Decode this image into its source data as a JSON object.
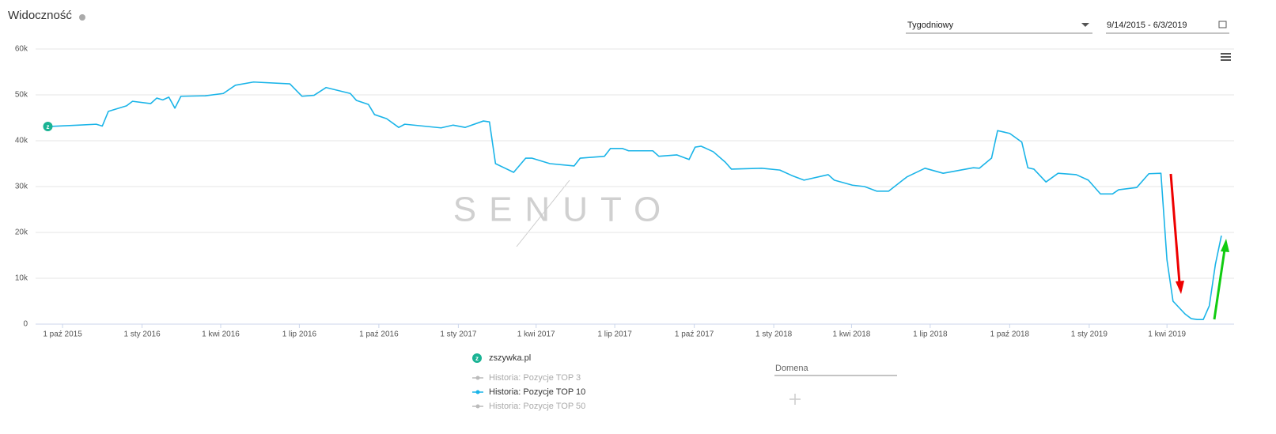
{
  "chart_data": {
    "type": "line",
    "title": "Widoczność",
    "controls": {
      "interval": "Tygodniowy",
      "date_range": "9/14/2015 - 6/3/2019",
      "domain_input": "Domena"
    },
    "watermark": "SENUTO",
    "domain": "zszywka.pl",
    "inactive_series": [
      "Historia: Pozycje TOP 3",
      "Historia: Pozycje TOP 50"
    ],
    "xlim": [
      "2015-09-14",
      "2019-06-03"
    ],
    "xticks": [
      {
        "value": "2015-10-01",
        "label": "1 paź 2015"
      },
      {
        "value": "2016-01-01",
        "label": "1 sty 2016"
      },
      {
        "value": "2016-04-01",
        "label": "1 kwi 2016"
      },
      {
        "value": "2016-07-01",
        "label": "1 lip 2016"
      },
      {
        "value": "2016-10-01",
        "label": "1 paź 2016"
      },
      {
        "value": "2017-01-01",
        "label": "1 sty 2017"
      },
      {
        "value": "2017-04-01",
        "label": "1 kwi 2017"
      },
      {
        "value": "2017-07-01",
        "label": "1 lip 2017"
      },
      {
        "value": "2017-10-01",
        "label": "1 paź 2017"
      },
      {
        "value": "2018-01-01",
        "label": "1 sty 2018"
      },
      {
        "value": "2018-04-01",
        "label": "1 kwi 2018"
      },
      {
        "value": "2018-07-01",
        "label": "1 lip 2018"
      },
      {
        "value": "2018-10-01",
        "label": "1 paź 2018"
      },
      {
        "value": "2019-01-01",
        "label": "1 sty 2019"
      },
      {
        "value": "2019-04-01",
        "label": "1 kwi 2019"
      }
    ],
    "ylim": [
      0,
      60000
    ],
    "yticks": [
      0,
      {
        "value": 10000,
        "label": "10k"
      },
      {
        "value": 20000,
        "label": "20k"
      },
      {
        "value": 30000,
        "label": "30k"
      },
      {
        "value": 40000,
        "label": "40k"
      },
      {
        "value": 50000,
        "label": "50k"
      },
      {
        "value": 60000,
        "label": "60k"
      }
    ],
    "grid": true,
    "x": [
      "2015-09-14",
      "2015-10-19",
      "2015-11-09",
      "2015-11-16",
      "2015-11-23",
      "2015-12-14",
      "2015-12-21",
      "2016-01-11",
      "2016-01-18",
      "2016-01-25",
      "2016-02-01",
      "2016-02-08",
      "2016-02-15",
      "2016-03-14",
      "2016-04-04",
      "2016-04-18",
      "2016-05-09",
      "2016-06-20",
      "2016-07-04",
      "2016-07-18",
      "2016-08-01",
      "2016-08-29",
      "2016-09-05",
      "2016-09-19",
      "2016-09-26",
      "2016-10-10",
      "2016-10-24",
      "2016-10-31",
      "2016-12-12",
      "2016-12-26",
      "2017-01-09",
      "2017-01-30",
      "2017-02-06",
      "2017-02-13",
      "2017-03-06",
      "2017-03-20",
      "2017-03-27",
      "2017-04-17",
      "2017-05-15",
      "2017-05-22",
      "2017-06-19",
      "2017-06-26",
      "2017-07-10",
      "2017-07-17",
      "2017-08-14",
      "2017-08-21",
      "2017-09-11",
      "2017-09-25",
      "2017-10-02",
      "2017-10-09",
      "2017-10-23",
      "2017-11-06",
      "2017-11-13",
      "2017-12-18",
      "2018-01-08",
      "2018-01-22",
      "2018-02-05",
      "2018-03-05",
      "2018-03-12",
      "2018-04-02",
      "2018-04-16",
      "2018-04-30",
      "2018-05-14",
      "2018-06-04",
      "2018-06-25",
      "2018-07-16",
      "2018-08-20",
      "2018-08-27",
      "2018-09-10",
      "2018-09-17",
      "2018-10-01",
      "2018-10-15",
      "2018-10-22",
      "2018-10-29",
      "2018-11-12",
      "2018-11-26",
      "2018-12-17",
      "2018-12-31",
      "2019-01-14",
      "2019-01-28",
      "2019-02-04",
      "2019-02-25",
      "2019-03-11",
      "2019-03-25",
      "2019-04-01",
      "2019-04-08",
      "2019-04-15",
      "2019-04-22",
      "2019-04-29",
      "2019-05-06",
      "2019-05-13",
      "2019-05-20",
      "2019-05-27",
      "2019-06-03"
    ],
    "series": [
      {
        "name": "Historia: Pozycje TOP 10",
        "color": "#1ab4e8",
        "values": [
          43100,
          43400,
          43600,
          43200,
          46400,
          47600,
          48600,
          48100,
          49300,
          48900,
          49500,
          47100,
          49700,
          49800,
          50300,
          52100,
          52800,
          52400,
          49700,
          49900,
          51600,
          50300,
          48800,
          47900,
          45700,
          44800,
          42900,
          43600,
          42800,
          43400,
          42900,
          44300,
          44100,
          35000,
          33100,
          36200,
          36200,
          35000,
          34500,
          36200,
          36600,
          38300,
          38300,
          37800,
          37800,
          36600,
          36900,
          35900,
          38600,
          38800,
          37600,
          35300,
          33800,
          34000,
          33600,
          32400,
          31400,
          32600,
          31400,
          30300,
          30000,
          29000,
          29000,
          32100,
          34000,
          32900,
          34100,
          34000,
          36200,
          42200,
          41600,
          39700,
          34100,
          33800,
          31000,
          32900,
          32600,
          31400,
          28400,
          28400,
          29300,
          29800,
          32800,
          32900,
          14000,
          5000,
          3600,
          2200,
          1200,
          1000,
          1000,
          4000,
          13000,
          19300
        ]
      }
    ]
  }
}
